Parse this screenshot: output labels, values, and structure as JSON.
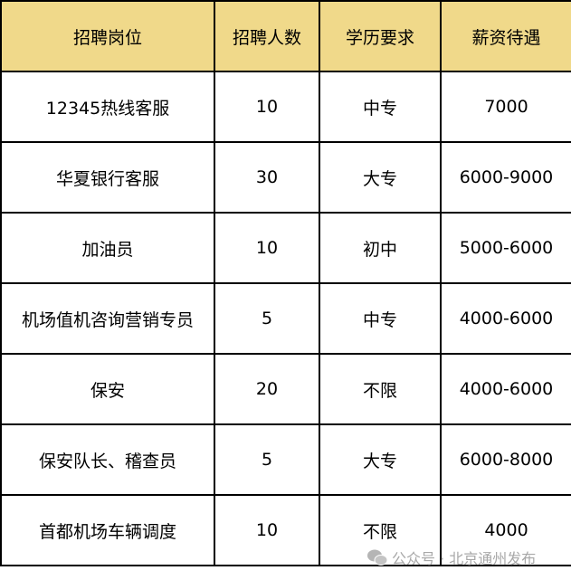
{
  "table": {
    "headers": [
      "招聘岗位",
      "招聘人数",
      "学历要求",
      "薪资待遇"
    ],
    "rows": [
      [
        "12345热线客服",
        "10",
        "中专",
        "7000"
      ],
      [
        "华夏银行客服",
        "30",
        "大专",
        "6000-9000"
      ],
      [
        "加油员",
        "10",
        "初中",
        "5000-6000"
      ],
      [
        "机场值机咨询营销专员",
        "5",
        "中专",
        "4000-6000"
      ],
      [
        "保安",
        "20",
        "不限",
        "4000-6000"
      ],
      [
        "保安队长、稽查员",
        "5",
        "大专",
        "6000-8000"
      ],
      [
        "首都机场车辆调度",
        "10",
        "不限",
        "4000"
      ]
    ]
  },
  "colors": {
    "header_bg": "#f0d98a",
    "border": "#000000"
  },
  "watermark": {
    "icon": "wechat-icon",
    "text": "公众号 · 北京通州发布"
  }
}
